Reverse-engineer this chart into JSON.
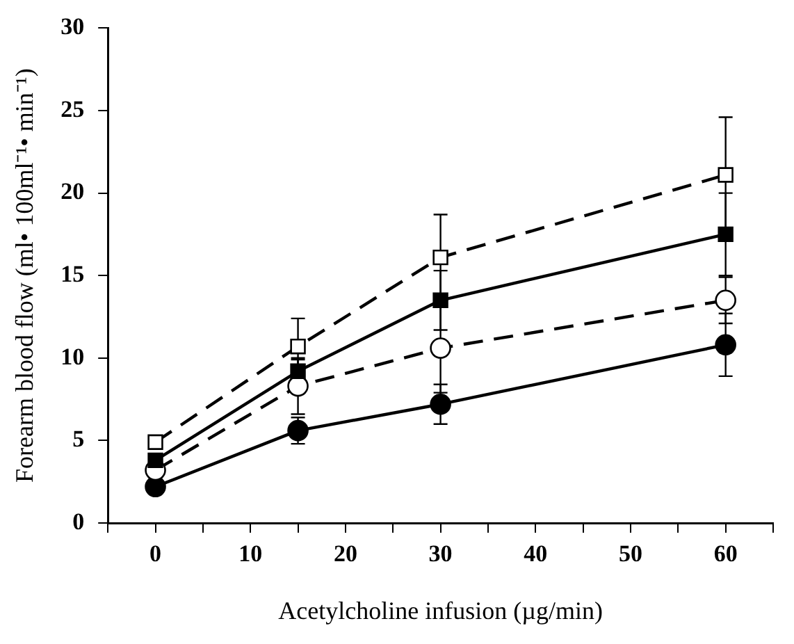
{
  "chart_data": {
    "type": "line",
    "xlabel": "Acetylcholine infusion (µg/min)",
    "ylabel": "Forearm blood flow (ml• 100ml⁻¹• min⁻¹)",
    "x": [
      0,
      15,
      30,
      60
    ],
    "xlim": [
      -5,
      65
    ],
    "xticks": [
      {
        "value": -5,
        "label": null
      },
      0,
      {
        "value": 5,
        "label": null
      },
      10,
      {
        "value": 15,
        "label": null
      },
      20,
      {
        "value": 25,
        "label": null
      },
      30,
      {
        "value": 35,
        "label": null
      },
      40,
      {
        "value": 45,
        "label": null
      },
      50,
      {
        "value": 55,
        "label": null
      },
      60,
      {
        "value": 65,
        "label": null
      }
    ],
    "ylim": [
      0,
      30
    ],
    "yticks": [
      0,
      5,
      10,
      15,
      20,
      25,
      30
    ],
    "grid": false,
    "series": [
      {
        "color": "#000000",
        "marker": "square",
        "line_style": "dashed",
        "values": [
          4.9,
          10.7,
          16.1,
          21.1
        ],
        "errors": [
          null,
          1.7,
          2.6,
          3.5
        ]
      },
      {
        "color": "#000000",
        "marker": "square",
        "line_style": "solid",
        "values": [
          3.8,
          9.2,
          13.5,
          17.5
        ],
        "errors": [
          null,
          0.7,
          1.8,
          2.5
        ]
      },
      {
        "color": "#000000",
        "marker": "circle",
        "line_style": "dashed",
        "values": [
          3.2,
          8.3,
          10.6,
          13.5
        ],
        "errors": [
          null,
          1.7,
          2.7,
          1.4
        ]
      },
      {
        "color": "#000000",
        "marker": "circle",
        "line_style": "solid",
        "values": [
          2.2,
          5.6,
          7.2,
          10.8
        ],
        "errors": [
          null,
          0.8,
          1.2,
          1.9
        ]
      }
    ]
  }
}
